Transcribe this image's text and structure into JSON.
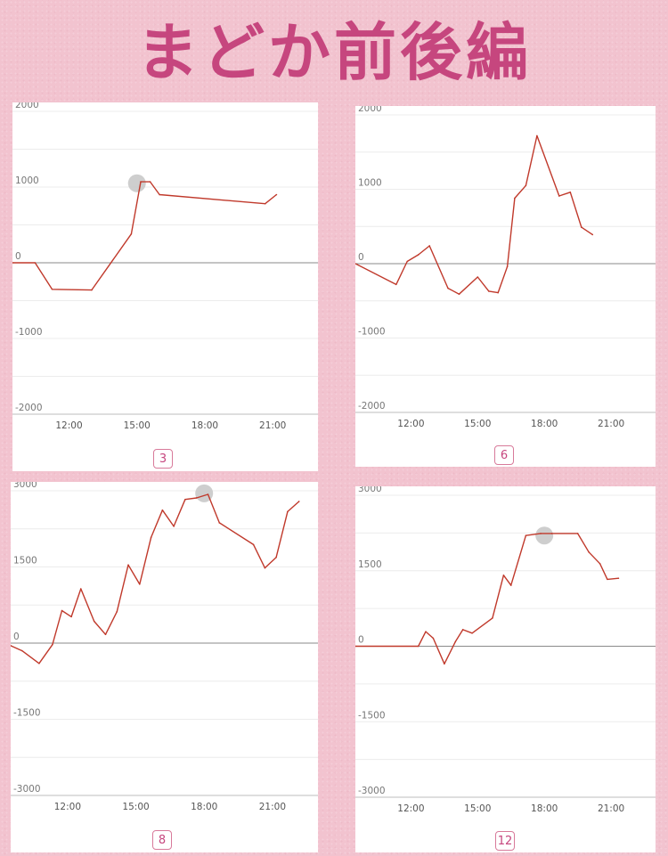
{
  "title": "まどか前後編",
  "colors": {
    "line": "#c0392b",
    "highlight": "#c9c9c9",
    "accent": "#c6467e"
  },
  "chart_data": [
    {
      "type": "line",
      "label": "3",
      "ylim": [
        -2000,
        2000
      ],
      "yticks": [
        2000,
        1000,
        0,
        -1000,
        -2000
      ],
      "xlim": [
        "09:30",
        "23:00"
      ],
      "xticks": [
        "12:00",
        "15:00",
        "18:00",
        "21:00"
      ],
      "grid": true,
      "series": [
        {
          "points": [
            [
              "09:30",
              0
            ],
            [
              "10:30",
              0
            ],
            [
              "11:15",
              -350
            ],
            [
              "13:00",
              -360
            ],
            [
              "14:45",
              380
            ],
            [
              "15:10",
              1070
            ],
            [
              "15:35",
              1070
            ],
            [
              "16:00",
              900
            ],
            [
              "20:40",
              780
            ],
            [
              "21:10",
              900
            ]
          ]
        }
      ],
      "highlight": [
        "15:00",
        1050
      ]
    },
    {
      "type": "line",
      "label": "6",
      "ylim": [
        -2000,
        2000
      ],
      "yticks": [
        2000,
        1000,
        0,
        -1000,
        -2000
      ],
      "xlim": [
        "09:30",
        "23:00"
      ],
      "xticks": [
        "12:00",
        "15:00",
        "18:00",
        "21:00"
      ],
      "grid": true,
      "series": [
        {
          "points": [
            [
              "09:30",
              0
            ],
            [
              "11:20",
              -280
            ],
            [
              "11:50",
              30
            ],
            [
              "12:20",
              120
            ],
            [
              "12:50",
              240
            ],
            [
              "13:40",
              -330
            ],
            [
              "14:10",
              -410
            ],
            [
              "15:00",
              -180
            ],
            [
              "15:30",
              -370
            ],
            [
              "15:55",
              -390
            ],
            [
              "16:20",
              -40
            ],
            [
              "16:40",
              880
            ],
            [
              "17:10",
              1050
            ],
            [
              "17:40",
              1720
            ],
            [
              "18:40",
              910
            ],
            [
              "19:10",
              960
            ],
            [
              "19:40",
              490
            ],
            [
              "20:10",
              390
            ]
          ]
        }
      ]
    },
    {
      "type": "line",
      "label": "8",
      "ylim": [
        -3000,
        3000
      ],
      "yticks": [
        3000,
        1500,
        0,
        -1500,
        -3000
      ],
      "xlim": [
        "09:30",
        "23:00"
      ],
      "xticks": [
        "12:00",
        "15:00",
        "18:00",
        "21:00"
      ],
      "grid": true,
      "series": [
        {
          "points": [
            [
              "09:30",
              -50
            ],
            [
              "10:00",
              -150
            ],
            [
              "10:45",
              -400
            ],
            [
              "11:20",
              -30
            ],
            [
              "11:45",
              640
            ],
            [
              "12:10",
              520
            ],
            [
              "12:35",
              1070
            ],
            [
              "13:10",
              430
            ],
            [
              "13:40",
              170
            ],
            [
              "14:10",
              620
            ],
            [
              "14:40",
              1540
            ],
            [
              "15:10",
              1160
            ],
            [
              "15:40",
              2080
            ],
            [
              "16:10",
              2620
            ],
            [
              "16:40",
              2300
            ],
            [
              "17:10",
              2830
            ],
            [
              "17:40",
              2860
            ],
            [
              "18:10",
              2930
            ],
            [
              "18:40",
              2370
            ],
            [
              "20:10",
              1940
            ],
            [
              "20:40",
              1480
            ],
            [
              "21:10",
              1690
            ],
            [
              "21:40",
              2590
            ],
            [
              "22:10",
              2790
            ]
          ]
        }
      ],
      "highlight": [
        "18:00",
        2950
      ]
    },
    {
      "type": "line",
      "label": "12",
      "ylim": [
        -3000,
        3000
      ],
      "yticks": [
        3000,
        1500,
        0,
        -1500,
        -3000
      ],
      "xlim": [
        "09:30",
        "23:00"
      ],
      "xticks": [
        "12:00",
        "15:00",
        "18:00",
        "21:00"
      ],
      "grid": true,
      "series": [
        {
          "points": [
            [
              "09:30",
              0
            ],
            [
              "12:20",
              0
            ],
            [
              "12:40",
              290
            ],
            [
              "13:00",
              160
            ],
            [
              "13:30",
              -350
            ],
            [
              "14:00",
              90
            ],
            [
              "14:20",
              330
            ],
            [
              "14:45",
              260
            ],
            [
              "15:40",
              560
            ],
            [
              "16:10",
              1410
            ],
            [
              "16:30",
              1210
            ],
            [
              "17:10",
              2200
            ],
            [
              "17:50",
              2240
            ],
            [
              "18:20",
              2240
            ],
            [
              "19:30",
              2240
            ],
            [
              "20:00",
              1870
            ],
            [
              "20:30",
              1640
            ],
            [
              "20:50",
              1330
            ],
            [
              "21:20",
              1350
            ]
          ]
        }
      ],
      "highlight": [
        "18:00",
        2200
      ]
    }
  ]
}
